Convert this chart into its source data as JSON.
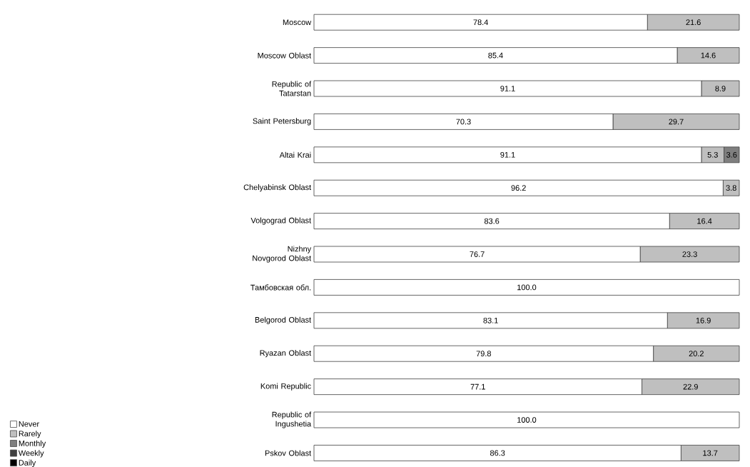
{
  "chart_data": {
    "type": "bar",
    "orientation": "horizontal",
    "stacked": true,
    "legend": "bottom left",
    "tick_labels": "y",
    "categories": [
      "Moscow",
      "Moscow Oblast",
      "Republic of Tatarstan",
      "Saint Petersburg",
      "Altai Krai",
      "Chelyabinsk Oblast",
      "Volgograd Oblast",
      "Nizhny Novgorod Oblast",
      "Тамбовская обл.",
      "Belgorod Oblast",
      "Ryazan Oblast",
      "Komi Republic",
      "Republic of Ingushetia",
      "Pskov Oblast"
    ],
    "series": [
      {
        "name": "Never",
        "color": "#ffffff",
        "values": [
          78.4,
          85.4,
          91.1,
          70.3,
          91.1,
          96.2,
          83.6,
          76.7,
          100.0,
          83.1,
          79.8,
          77.1,
          100.0,
          86.3
        ],
        "value_labels": [
          "78.4",
          "85.4",
          "91.1",
          "70.3",
          "91.1",
          "96.2",
          "83.6",
          "76.7",
          "100.0",
          "83.1",
          "79.8",
          "77.1",
          "100.0",
          "86.3"
        ]
      },
      {
        "name": "Rarely",
        "color": "#bfbfbf",
        "values": [
          21.6,
          14.6,
          8.9,
          29.7,
          5.3,
          3.8,
          16.4,
          23.3,
          null,
          16.9,
          20.2,
          22.9,
          null,
          13.7
        ],
        "value_labels": [
          "21.6",
          "14.6",
          "8.9",
          "29.7",
          "5.3",
          "3.8",
          "16.4",
          "23.3",
          null,
          "16.9",
          "20.2",
          "22.9",
          null,
          "13.7"
        ]
      },
      {
        "name": "Monthly",
        "color": "#7f7f7f",
        "values": [
          null,
          null,
          null,
          null,
          3.6,
          null,
          null,
          null,
          null,
          null,
          null,
          null,
          null,
          null
        ],
        "value_labels": [
          null,
          null,
          null,
          null,
          "3.6",
          null,
          null,
          null,
          null,
          null,
          null,
          null,
          null,
          null
        ]
      },
      {
        "name": "Weekly",
        "color": "#404040",
        "values": [
          null,
          null,
          null,
          null,
          null,
          null,
          null,
          null,
          null,
          null,
          null,
          null,
          null,
          null
        ]
      },
      {
        "name": "Daily",
        "color": "#000000",
        "values": [
          null,
          null,
          null,
          null,
          null,
          null,
          null,
          null,
          null,
          null,
          null,
          null,
          null,
          null
        ]
      }
    ]
  }
}
